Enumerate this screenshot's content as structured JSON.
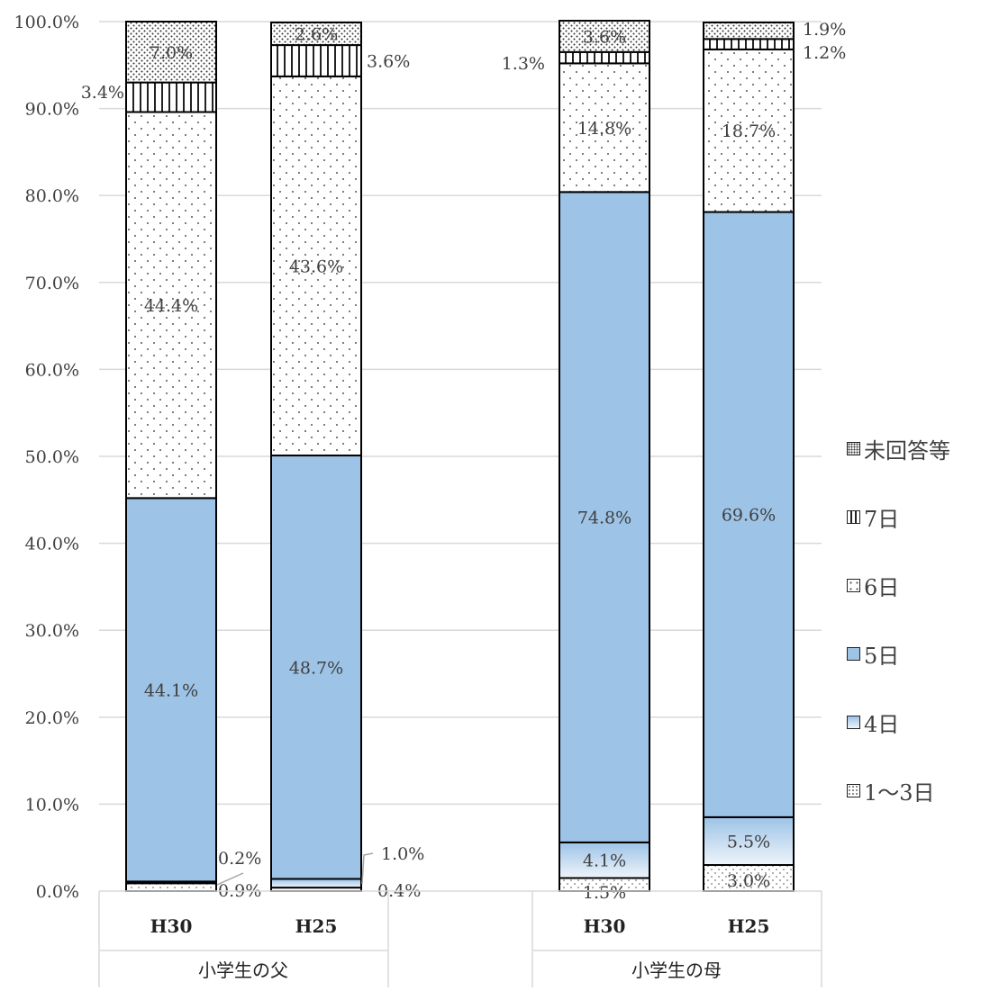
{
  "chart_data": {
    "type": "bar",
    "stacked": true,
    "percent": true,
    "groups": [
      {
        "label": "小学生の父",
        "categories": [
          "H30",
          "H25"
        ]
      },
      {
        "label": "小学生の母",
        "categories": [
          "H30",
          "H25"
        ]
      }
    ],
    "categories": [
      "H30",
      "H25",
      "H30",
      "H25"
    ],
    "series": [
      {
        "name": "1〜3日",
        "values": [
          0.9,
          0.4,
          1.5,
          3.0
        ],
        "labels": [
          "0.9%",
          "0.4%",
          "1.5%",
          "3.0%"
        ]
      },
      {
        "name": "4日",
        "values": [
          0.2,
          1.0,
          4.1,
          5.5
        ],
        "labels": [
          "0.2%",
          "1.0%",
          "4.1%",
          "5.5%"
        ]
      },
      {
        "name": "5日",
        "values": [
          44.1,
          48.7,
          74.8,
          69.6
        ],
        "labels": [
          "44.1%",
          "48.7%",
          "74.8%",
          "69.6%"
        ]
      },
      {
        "name": "6日",
        "values": [
          44.4,
          43.6,
          14.8,
          18.7
        ],
        "labels": [
          "44.4%",
          "43.6%",
          "14.8%",
          "18.7%"
        ]
      },
      {
        "name": "7日",
        "values": [
          3.4,
          3.6,
          1.3,
          1.2
        ],
        "labels": [
          "3.4%",
          "3.6%",
          "1.3%",
          "1.2%"
        ]
      },
      {
        "name": "未回答等",
        "values": [
          7.0,
          2.6,
          3.6,
          1.9
        ],
        "labels": [
          "7.0%",
          "2.6%",
          "3.6%",
          "1.9%"
        ]
      }
    ],
    "ylim": [
      0,
      100
    ],
    "yticks": [
      "0.0%",
      "10.0%",
      "20.0%",
      "30.0%",
      "40.0%",
      "50.0%",
      "60.0%",
      "70.0%",
      "80.0%",
      "90.0%",
      "100.0%"
    ],
    "grid": true,
    "legend_position": "right",
    "colors": {
      "1〜3日": "#ffffff",
      "4日": "#c9dcf0",
      "5日": "#9dc3e6",
      "6日": "#ffffff",
      "7日": "#ffffff",
      "未回答等": "#ffffff"
    }
  }
}
